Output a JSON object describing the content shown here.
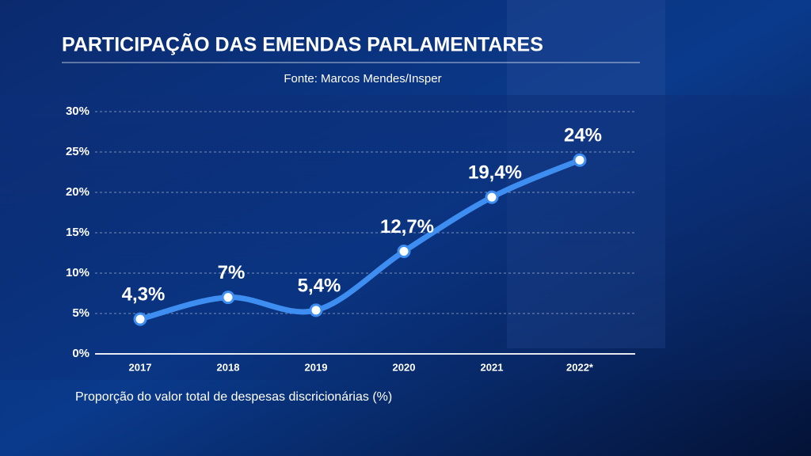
{
  "chart_data": {
    "type": "line",
    "title": "PARTICIPAÇÃO DAS EMENDAS PARLAMENTARES",
    "subtitle": "Fonte: Marcos Mendes/Insper",
    "caption": "Proporção do valor total de despesas discricionárias (%)",
    "categories": [
      "2017",
      "2018",
      "2019",
      "2020",
      "2021",
      "2022*"
    ],
    "series": [
      {
        "name": "Participação",
        "color": "#3d8ef0",
        "values": [
          4.3,
          7,
          5.4,
          12.7,
          19.4,
          24
        ],
        "value_labels": [
          "4,3%",
          "7%",
          "5,4%",
          "12,7%",
          "19,4%",
          "24%"
        ]
      }
    ],
    "ylim": [
      0,
      30
    ],
    "yticks": [
      {
        "value": 0,
        "label": "0%"
      },
      {
        "value": 5,
        "label": "5%"
      },
      {
        "value": 10,
        "label": "10%"
      },
      {
        "value": 15,
        "label": "15%"
      },
      {
        "value": 20,
        "label": "20%"
      },
      {
        "value": 25,
        "label": "25%"
      },
      {
        "value": 30,
        "label": "30%"
      }
    ],
    "grid": true
  }
}
